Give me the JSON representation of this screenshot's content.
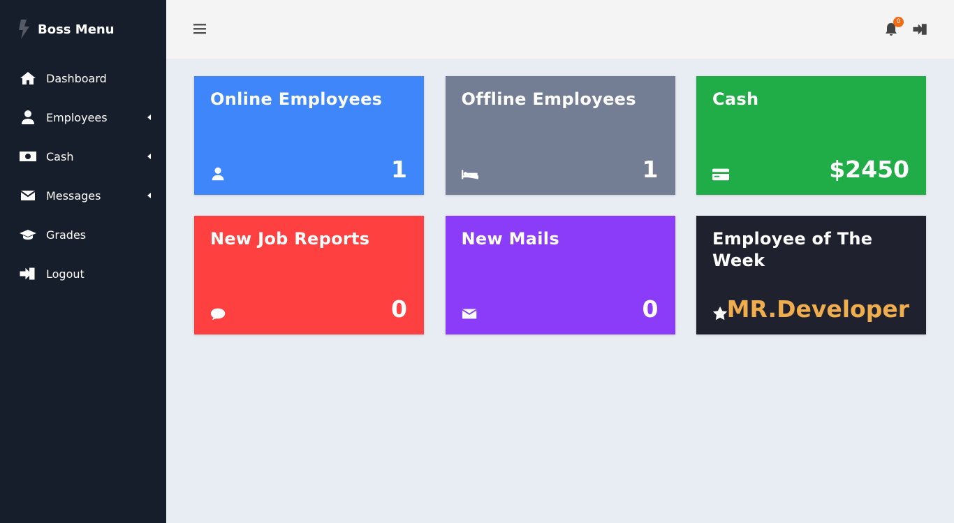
{
  "sidebar": {
    "brand": "Boss Menu",
    "nav": [
      "Dashboard",
      "Employees",
      "Cash",
      "Messages",
      "Grades",
      "Logout"
    ]
  },
  "topbar": {
    "notification_count": 0
  },
  "cards": [
    {
      "title": "Online Employees",
      "value": 1
    },
    {
      "title": "Offline Employees",
      "value": 1
    },
    {
      "title": "Cash",
      "value": "$2450"
    },
    {
      "title": "New Job Reports",
      "value": 0
    },
    {
      "title": "New Mails",
      "value": 0
    },
    {
      "title": "Employee of The Week",
      "value": "MR.Developer"
    }
  ]
}
